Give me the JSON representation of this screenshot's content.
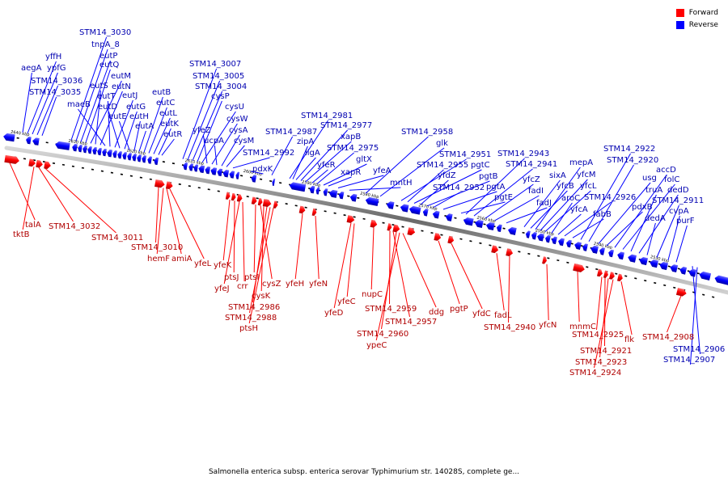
{
  "legend": {
    "forward": {
      "label": "Forward",
      "color": "#ff0000"
    },
    "reverse": {
      "label": "Reverse",
      "color": "#0000ff"
    }
  },
  "caption": "Salmonella enterica subsp. enterica serovar Typhimurium str. 14028S, complete ge...",
  "axis": {
    "ticks": [
      "2640 kbp",
      "2630 kbp",
      "2620 kbp",
      "2610 kbp",
      "2600 kbp",
      "2590 kbp",
      "2580 kbp",
      "2570 kbp",
      "2560 kbp",
      "2550 kbp",
      "2540 kbp",
      "2530 kbp"
    ]
  },
  "reverse_labels": [
    "aegA",
    "yffH",
    "ypfG",
    "STM14_3036",
    "STM14_3035",
    "STM14_3030",
    "tnpA_8",
    "eutP",
    "eutQ",
    "eutM",
    "eutS",
    "eutN",
    "maeB",
    "eutT",
    "eutJ",
    "eutD",
    "eutG",
    "eutE",
    "eutH",
    "eutA",
    "eutB",
    "eutC",
    "eutL",
    "eutK",
    "eutR",
    "STM14_3007",
    "STM14_3005",
    "STM14_3004",
    "cysP",
    "cysU",
    "yfeZ",
    "cysW",
    "ucpA",
    "cysA",
    "cysM",
    "STM14_2992",
    "pdxK",
    "STM14_2987",
    "STM14_2981",
    "zipA",
    "ligA",
    "STM14_2977",
    "xapB",
    "yfeR",
    "STM14_2975",
    "gltX",
    "xapR",
    "yfeA",
    "mntH",
    "STM14_2958",
    "glk",
    "STM14_2951",
    "STM14_2955",
    "pgtC",
    "yfdZ",
    "pgtB",
    "STM14_2952",
    "pgtA",
    "pgtE",
    "STM14_2943",
    "STM14_2941",
    "yfcZ",
    "fadI",
    "fadJ",
    "sixA",
    "yfcB",
    "mepA",
    "yfcM",
    "yfcL",
    "aroC",
    "yfcA",
    "STM14_2926",
    "fabB",
    "STM14_2922",
    "STM14_2920",
    "usg",
    "pdxB",
    "accD",
    "folC",
    "truA",
    "dedD",
    "dedA",
    "STM14_2911",
    "cvpA",
    "purF",
    "STM14_2906",
    "STM14_2907"
  ],
  "forward_labels": [
    "talA",
    "tktB",
    "STM14_3032",
    "STM14_3011",
    "STM14_3010",
    "hemF",
    "amiA",
    "yfeL",
    "yfeK",
    "ptsJ",
    "yfeJ",
    "crr",
    "ptsI",
    "cysZ",
    "cysK",
    "STM14_2986",
    "STM14_2988",
    "ptsH",
    "yfeH",
    "yfeN",
    "yfeD",
    "yfeC",
    "nupC",
    "STM14_2959",
    "STM14_2957",
    "STM14_2960",
    "ypeC",
    "ddg",
    "pgtP",
    "yfdC",
    "fadL",
    "STM14_2940",
    "yfcN",
    "mnmC",
    "STM14_2925",
    "STM14_2921",
    "STM14_2923",
    "STM14_2924",
    "flk",
    "STM14_2908"
  ]
}
